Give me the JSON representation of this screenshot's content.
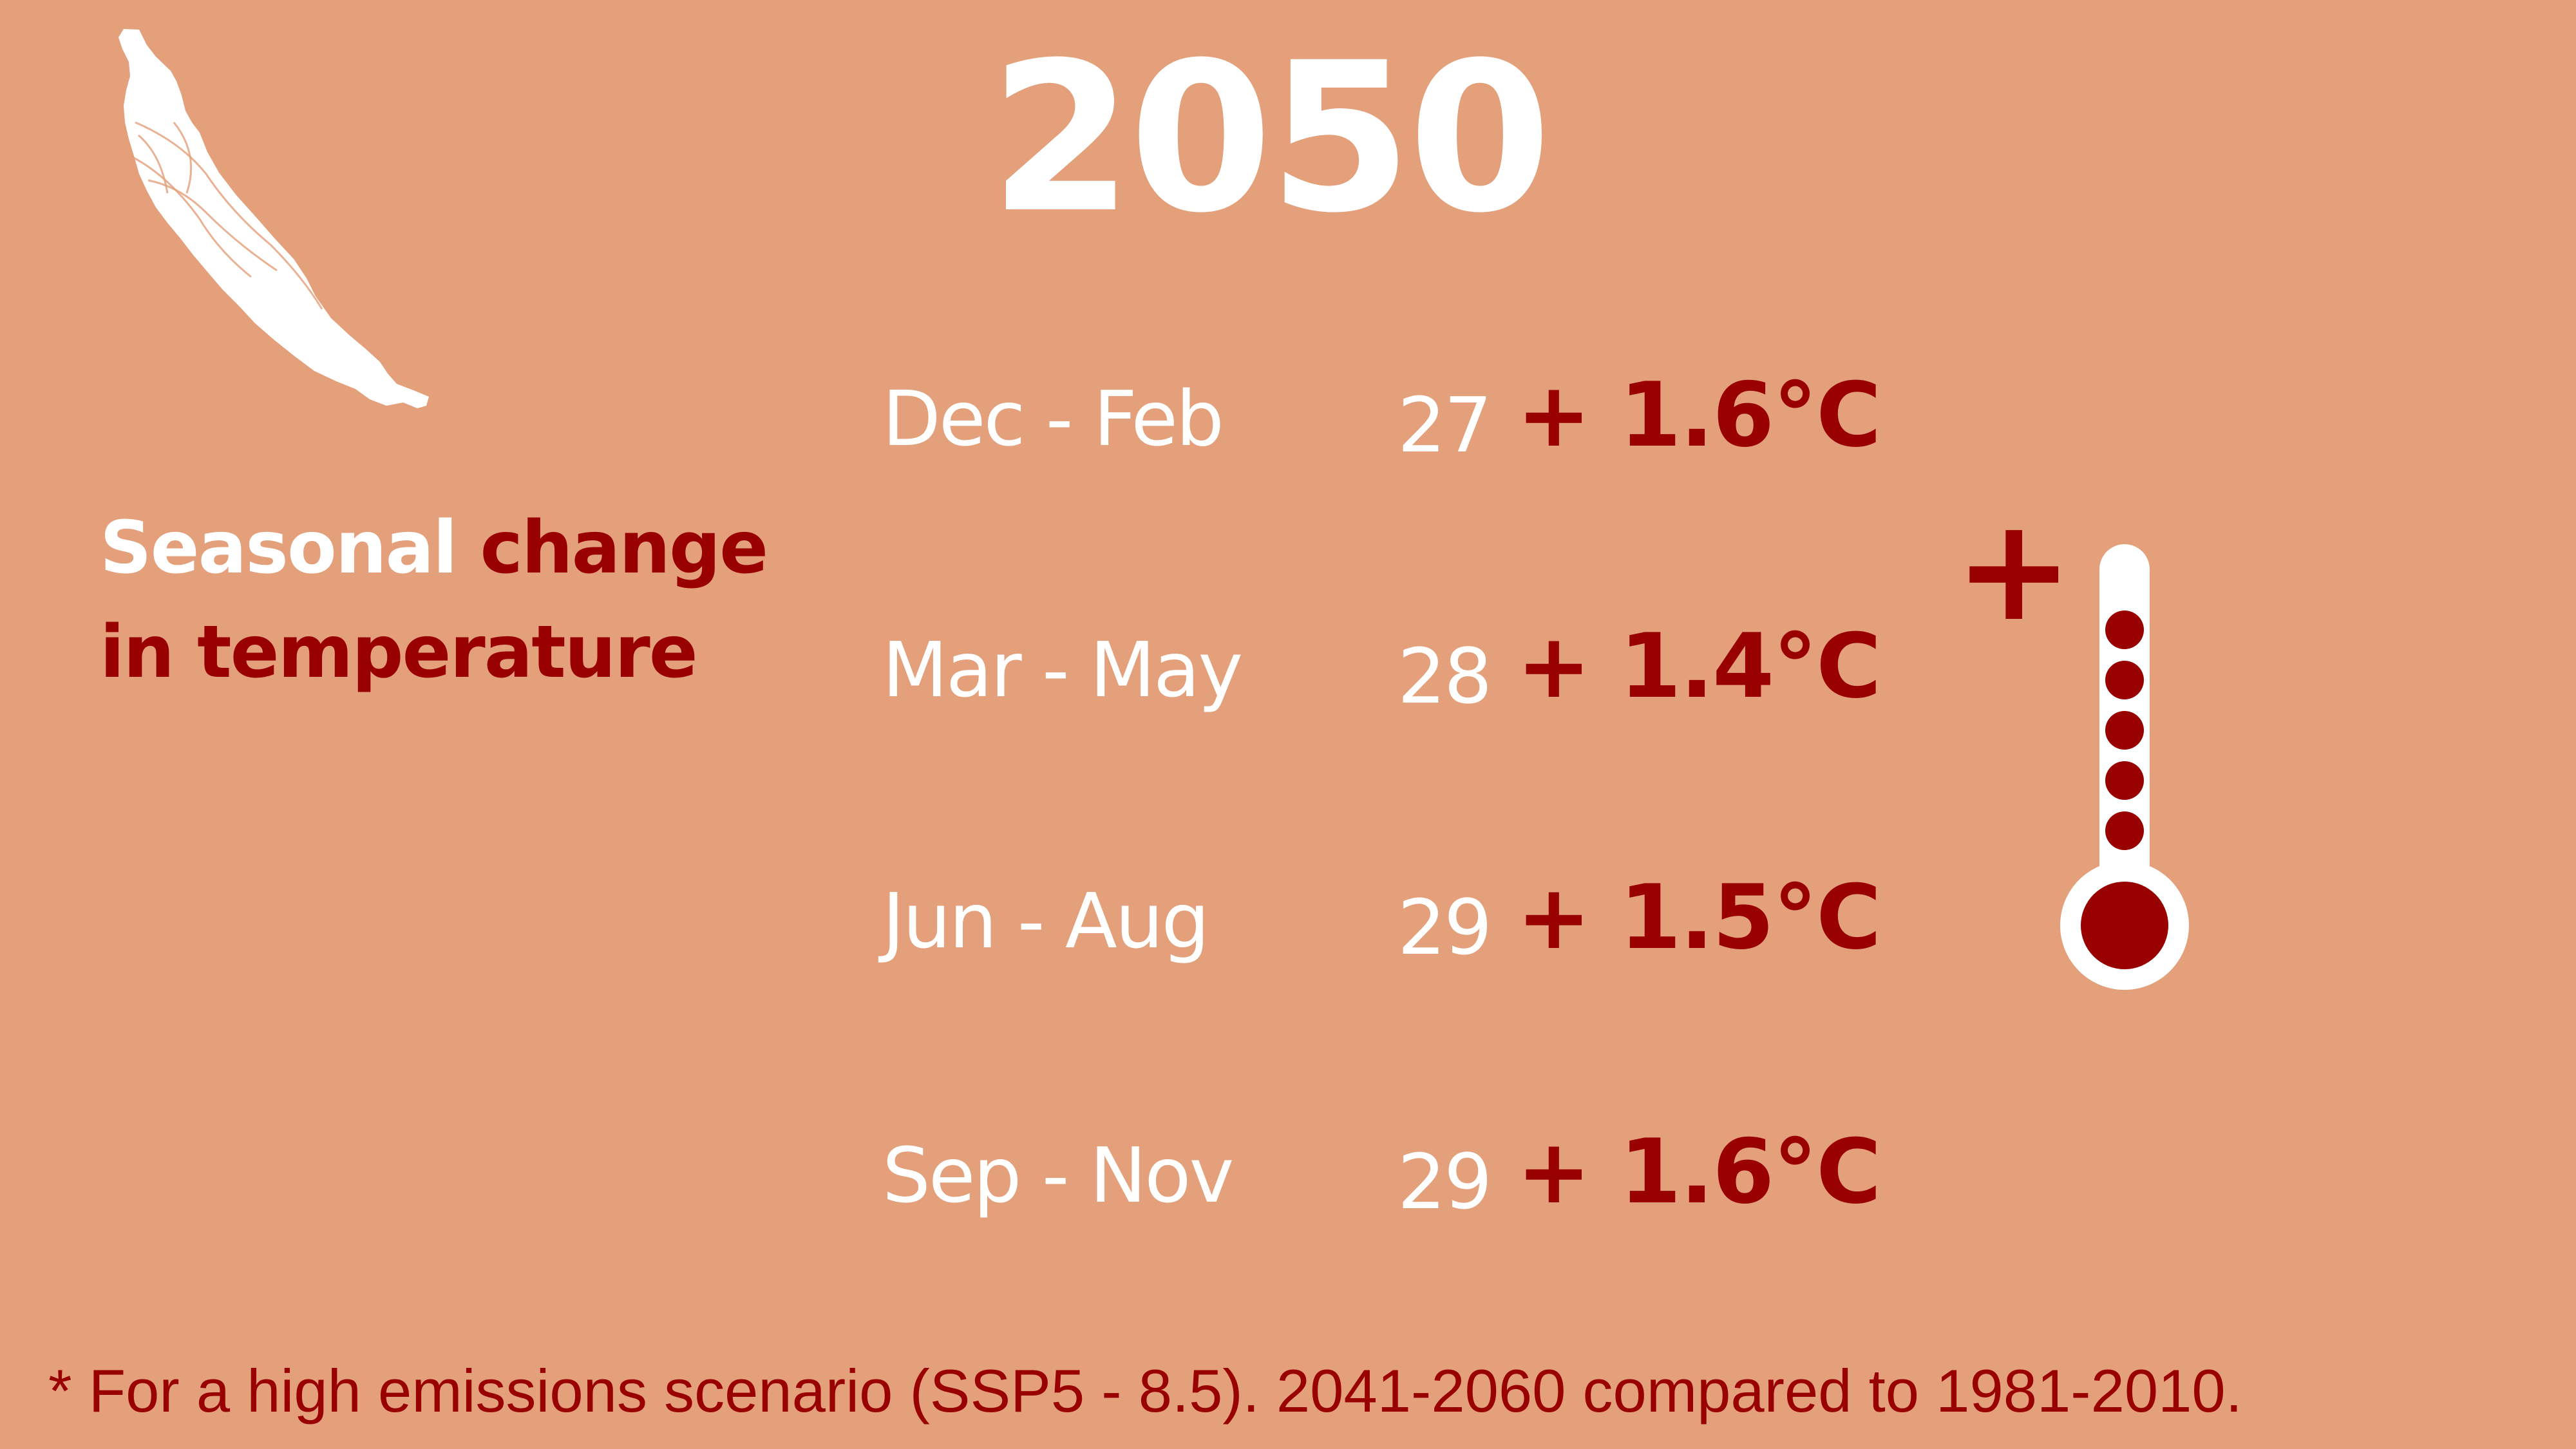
{
  "colors": {
    "background": "#E49F7B",
    "white": "#FFFFFF",
    "accent": "#990000"
  },
  "map": {
    "icon": "island-map-icon"
  },
  "title": {
    "year": "2050"
  },
  "headline": {
    "part1": "Seasonal ",
    "part2": "change",
    "part3": "in temperature"
  },
  "seasons": [
    {
      "label": "Dec - Feb",
      "base": "27",
      "change": "+ 1.6°C"
    },
    {
      "label": "Mar - May",
      "base": "28",
      "change": "+ 1.4°C"
    },
    {
      "label": "Jun - Aug",
      "base": "29",
      "change": "+ 1.5°C"
    },
    {
      "label": "Sep - Nov",
      "base": "29",
      "change": "+ 1.6°C"
    }
  ],
  "thermometer": {
    "plus": "+",
    "icon": "thermometer-icon"
  },
  "footnote": {
    "text": "* For a high emissions scenario (SSP5 - 8.5). 2041-2060 compared to 1981-2010."
  }
}
